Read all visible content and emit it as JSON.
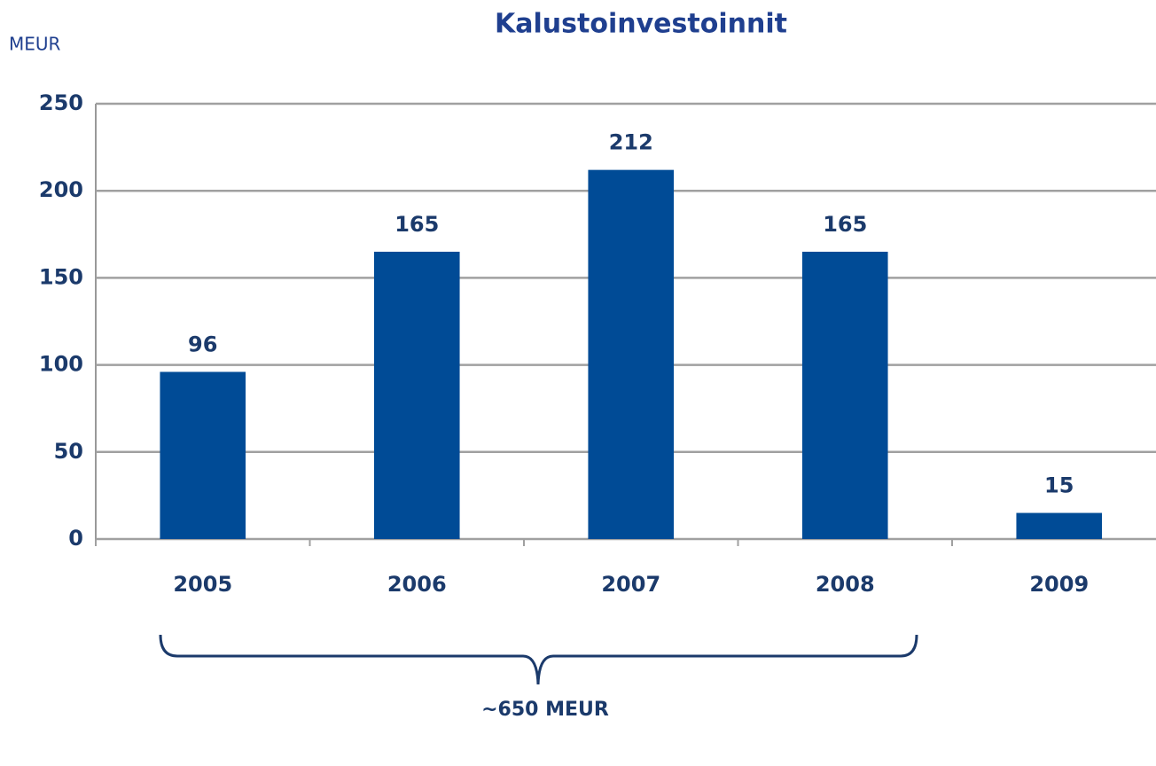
{
  "chart_data": {
    "type": "bar",
    "title": "Kalustoinvestoinnit",
    "y_axis_label": "MEUR",
    "categories": [
      "2005",
      "2006",
      "2007",
      "2008",
      "2009"
    ],
    "values": [
      96,
      165,
      212,
      165,
      15
    ],
    "color": "#004b96",
    "ylim": [
      0,
      250
    ],
    "yticks": [
      0,
      50,
      100,
      150,
      200,
      250
    ],
    "grid": true,
    "annotation": "~650 MEUR"
  }
}
